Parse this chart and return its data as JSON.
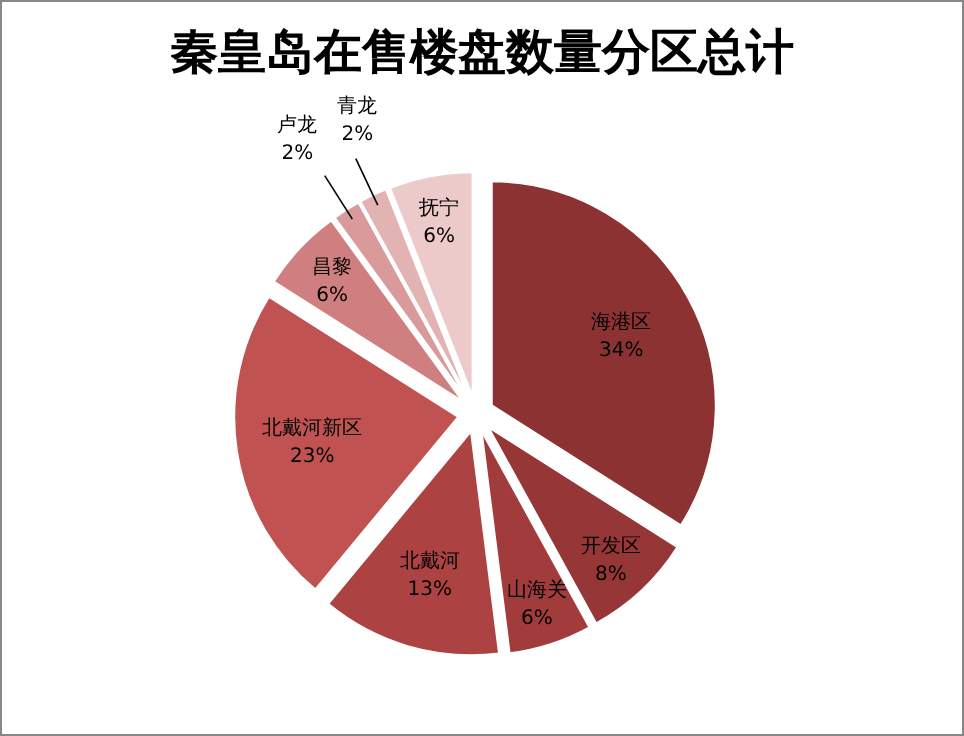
{
  "chart_data": {
    "type": "pie",
    "title": "秦皇岛在售楼盘数量分区总计",
    "categories": [
      "海港区",
      "开发区",
      "山海关",
      "北戴河",
      "北戴河新区",
      "昌黎",
      "卢龙",
      "青龙",
      "抚宁"
    ],
    "values": [
      34,
      8,
      6,
      13,
      23,
      6,
      2,
      2,
      6
    ],
    "value_labels": [
      "34%",
      "8%",
      "6%",
      "13%",
      "23%",
      "6%",
      "2%",
      "2%",
      "6%"
    ],
    "colors": [
      "#8c3232",
      "#973636",
      "#a23b3b",
      "#ad4242",
      "#c05252",
      "#cf7f7f",
      "#d89a9a",
      "#e2b3b3",
      "#edcaca"
    ],
    "legend": false
  }
}
